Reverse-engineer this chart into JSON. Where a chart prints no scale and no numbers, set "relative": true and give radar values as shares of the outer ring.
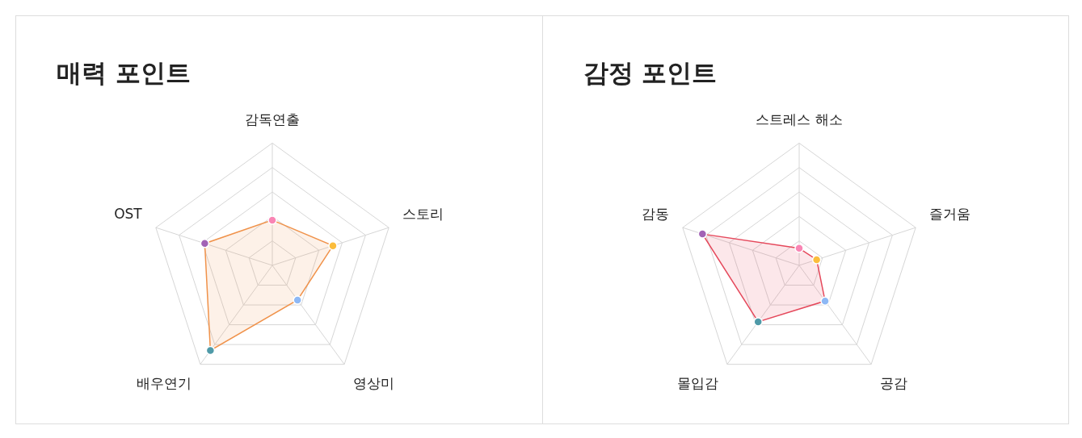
{
  "chart_data": [
    {
      "type": "radar",
      "title": "매력 포인트",
      "categories": [
        "감독연출",
        "스토리",
        "영상미",
        "배우연기",
        "OST"
      ],
      "relative": true,
      "grid": true,
      "marker": "circle",
      "legend": false,
      "series": [
        {
          "color": "#f0924a",
          "colors": [
            "#f985b4",
            "#fbbd3c",
            "#8db8f5",
            "#4f9aa8",
            "#a262b5"
          ],
          "values": [
            0.37,
            0.52,
            0.35,
            0.86,
            0.58
          ]
        }
      ]
    },
    {
      "type": "radar",
      "title": "감정 포인트",
      "categories": [
        "스트레스 해소",
        "즐거움",
        "공감",
        "몰입감",
        "감동"
      ],
      "relative": true,
      "grid": true,
      "marker": "circle",
      "legend": false,
      "series": [
        {
          "color": "#e5485b",
          "colors": [
            "#f985b4",
            "#fbbd3c",
            "#8db8f5",
            "#4f9aa8",
            "#a262b5"
          ],
          "values": [
            0.14,
            0.15,
            0.36,
            0.57,
            0.83
          ]
        }
      ]
    }
  ]
}
